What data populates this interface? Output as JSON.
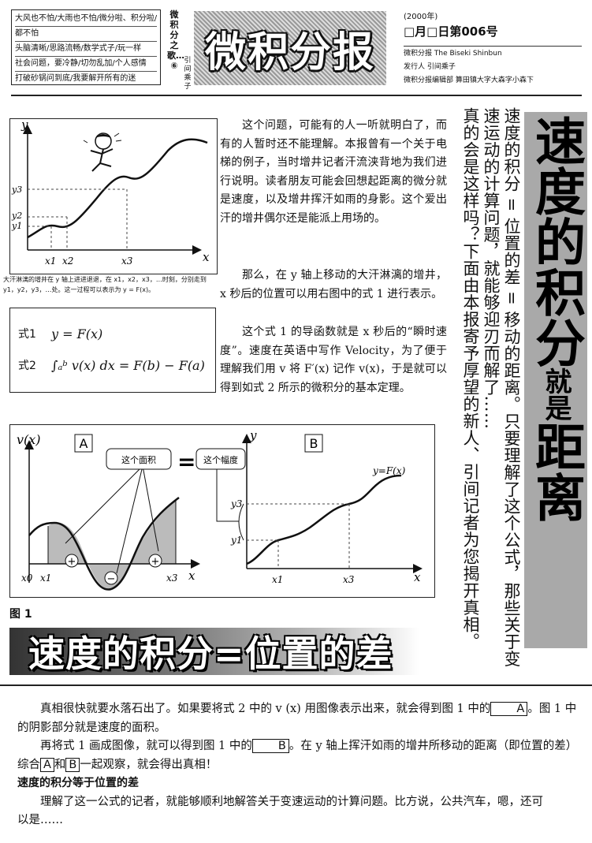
{
  "masthead": {
    "slogans": [
      "大风也不怕/大雨也不怕/微分啦、积分啦/",
      "都不怕",
      "头脑清晰/思路流畅/数学式子/玩一样",
      "社会问题，要冷静/切勿乱加/个人感情",
      "打破砂锅问到底/我要解开所有的迷"
    ],
    "series_vertical": "微积分之歌…⑥",
    "author_vertical": "引间乘子",
    "title": "微积分报",
    "year": "(2000年)",
    "issue": "□月□日第006号",
    "publisher_lines": [
      "微积分报  The Biseki Shinbun",
      "发行人  引间乘子",
      "微积分报编辑部  算田镇大字大森字小森下"
    ]
  },
  "fig_top": {
    "axis_y": "y",
    "axis_x": "x",
    "y_ticks": [
      "y3",
      "y2",
      "y1"
    ],
    "x_ticks": [
      "x1",
      "x2",
      "x3"
    ],
    "caption_1": "大汗淋漓的增井在 y 轴上进进退退，在 x1，x2，x3，…时刻，分别走到",
    "caption_2": "y1，y2，y3，…处。这一过程可以表示为 y = F(x)。"
  },
  "formulas": {
    "f1_label": "式1",
    "f1": "y = F(x)",
    "f2_label": "式2",
    "f2": "∫ₐᵇ v(x) dx = F(b) − F(a)"
  },
  "article": {
    "p1": "这个问题，可能有的人一听就明白了，而有的人暂时还不能理解。本报曾有一个关于电梯的例子，当时增井记者汗流浃背地为我们进行说明。读者朋友可能会回想起距离的微分就是速度，以及增井挥汗如雨的身影。这个爱出汗的增井偶尔还是能派上用场的。",
    "p2": "那么，在 y 轴上移动的大汗淋漓的增井，x 秒后的位置可以用右图中的式 1 进行表示。",
    "p3": "这个式 1 的导函数就是 x 秒后的“瞬时速度”。速度在英语中写作 Velocity，为了便于理解我们用 v 将 F′(x) 记作 v(x)，于是就可以得到如式 2 所示的微积分的基本定理。"
  },
  "vertical_text": {
    "col_left": "真的会是这样吗？下面由本报寄予厚望的新人、引间记者为您揭开真相。",
    "col_mid": "速度的积分 = 位置的差 = 移动的距离。只要理解了这个公式，那些关于变速运动的计算问题，就能够迎刃而解了……"
  },
  "headline_vertical": {
    "part1": "速度的积分",
    "part2": "就",
    "part3": "是",
    "part4": "距离"
  },
  "figure1": {
    "graphA_ylabel": "v(x)",
    "graphA_tag": "A",
    "area_label": "这个面积",
    "equals": "=",
    "width_label": "这个幅度",
    "graphB_tag": "B",
    "graphB_curve": "y=F(x)",
    "graphA_x_ticks": [
      "x0",
      "x1",
      "x3"
    ],
    "graphB_x_ticks": [
      "x1",
      "x3"
    ],
    "graphB_y_ticks": [
      "y3",
      "y1"
    ],
    "plus": "+",
    "minus": "−",
    "axis_x": "x",
    "axis_y": "y",
    "label": "图 1"
  },
  "banner": "速度的积分=位置的差",
  "bottom": {
    "l1a": "真相很快就要水落石出了。如果要将式 2 中的 v (x) 用图像表示出来，就会得到图 1 中的",
    "l1b": "。图 1 中",
    "l2": "的阴影部分就是速度的面积。",
    "l3a": "再将式 1 画成图像，就可以得到图 1 中的",
    "l3b": "。在 y 轴上挥汗如雨的增井所移动的距离（即位置的差）",
    "l4a": "综合",
    "l4b": "和",
    "l4c": "一起观察，就会得出真相！",
    "subhead": "速度的积分等于位置的差",
    "l5": "理解了这一公式的记者，就能够顺利地解答关于变速运动的计算问题。比方说，公共汽车，嗯，还可",
    "l6": "以是……",
    "tagA": "A",
    "tagB": "B"
  }
}
